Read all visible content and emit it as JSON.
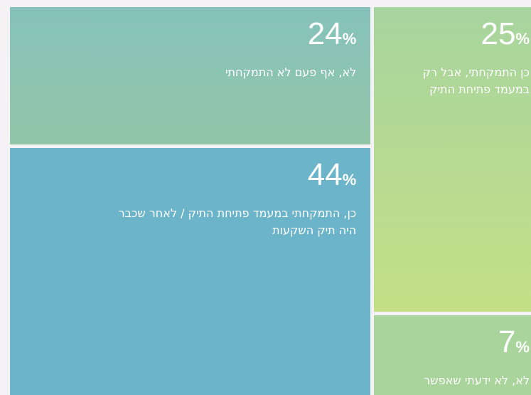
{
  "chart_data": {
    "type": "treemap",
    "categories": [
      "לא, אף פעם לא התמקחתי",
      "כן, התמקחתי במעמד פתיחת התיק / לאחר שכבר היה תיק השקעות",
      "כן התמקחתי, אבל רק במעמד פתיחת התיק",
      "לא, לא ידעתי שאפשר"
    ],
    "values": [
      24,
      44,
      25,
      7
    ],
    "value_labels": [
      "24%",
      "44%",
      "25%",
      "7%"
    ],
    "colors": [
      [
        "#86c2bb",
        "#93c6a9"
      ],
      [
        "#6bb4c9",
        "#6bb4c9"
      ],
      [
        "#a7d49f",
        "#c5e086"
      ],
      [
        "#a9d49c",
        "#a9d49c"
      ]
    ]
  }
}
